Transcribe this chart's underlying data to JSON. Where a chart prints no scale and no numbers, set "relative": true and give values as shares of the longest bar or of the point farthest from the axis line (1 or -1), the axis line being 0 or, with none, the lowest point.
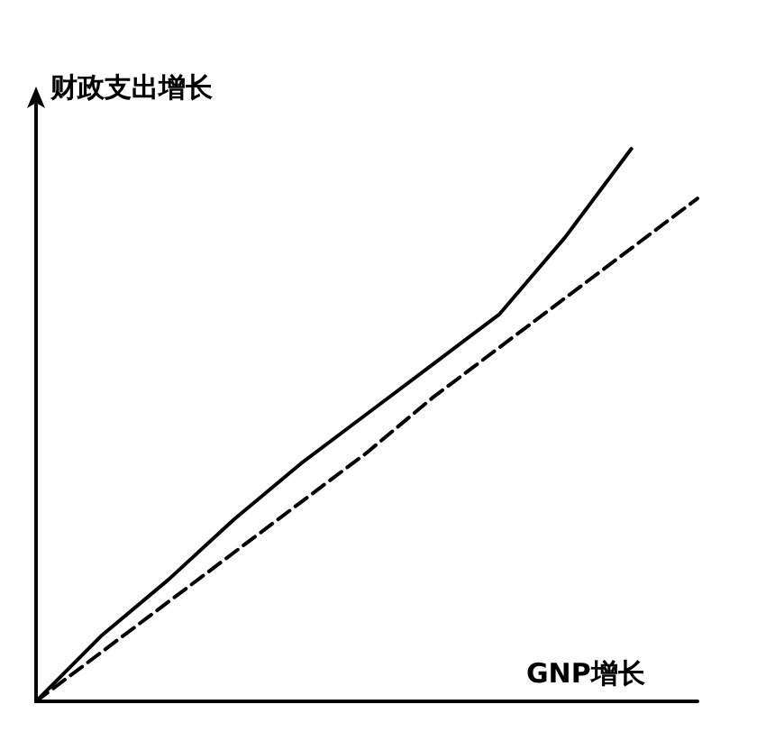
{
  "chart_data": {
    "type": "line",
    "relative": true,
    "xlabel": "GNP增长",
    "ylabel": "财政支出增长",
    "categories": [
      null,
      null,
      null,
      null,
      null,
      null,
      null,
      null,
      null,
      null,
      null
    ],
    "grid": false,
    "marker": "none",
    "series": [
      {
        "color": "#000000",
        "line_style": "solid",
        "values": [
          0,
          0.12,
          0.22,
          0.33,
          0.43,
          0.52,
          0.61,
          0.7,
          0.84,
          1,
          null
        ]
      },
      {
        "color": "#000000",
        "line_style": "dashed",
        "values": [
          0,
          0.09,
          0.18,
          0.27,
          0.36,
          0.45,
          0.55,
          0.64,
          0.73,
          0.82,
          0.91
        ]
      }
    ]
  }
}
